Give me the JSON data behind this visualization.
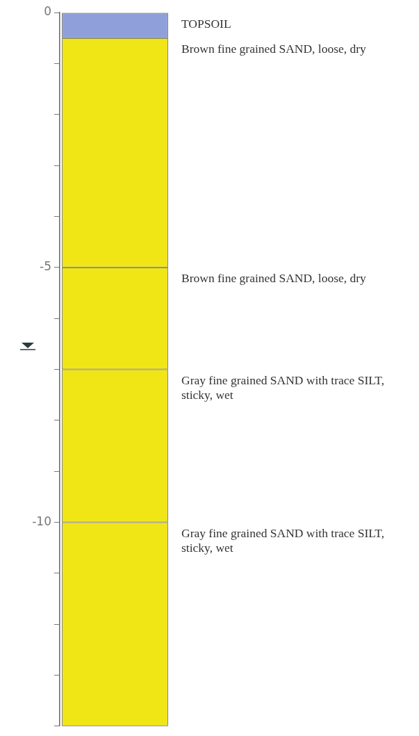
{
  "chart_data": {
    "type": "bar",
    "stacked": true,
    "categories": [
      null
    ],
    "series": [
      {
        "name": "TOPSOIL",
        "color": "#8f9fd9",
        "values": [
          -0.5
        ]
      },
      {
        "name": "Brown fine grained SAND, loose, dry",
        "color": "#f0e616",
        "values": [
          -4.5
        ]
      },
      {
        "name": "Brown fine grained SAND, loose, dry",
        "color": "#f0e616",
        "values": [
          -2
        ]
      },
      {
        "name": "Gray fine grained SAND with trace SILT, sticky, wet",
        "color": "#f0e616",
        "values": [
          -3
        ]
      },
      {
        "name": "Gray fine grained SAND with trace SILT, sticky, wet",
        "color": "#f0e616",
        "values": [
          -4
        ]
      }
    ],
    "ylim": [
      -14,
      0
    ],
    "yticks": [
      0,
      {
        "value": -1,
        "label": null
      },
      {
        "value": -2,
        "label": null
      },
      {
        "value": -3,
        "label": null
      },
      {
        "value": -4,
        "label": null
      },
      -5,
      {
        "value": -6,
        "label": null
      },
      {
        "value": -7,
        "label": null
      },
      {
        "value": -8,
        "label": null
      },
      {
        "value": -9,
        "label": null
      },
      -10,
      {
        "value": -11,
        "label": null
      },
      {
        "value": -12,
        "label": null
      },
      {
        "value": -13,
        "label": null
      },
      {
        "value": -14,
        "label": null
      }
    ],
    "grid": false,
    "legend": false
  }
}
